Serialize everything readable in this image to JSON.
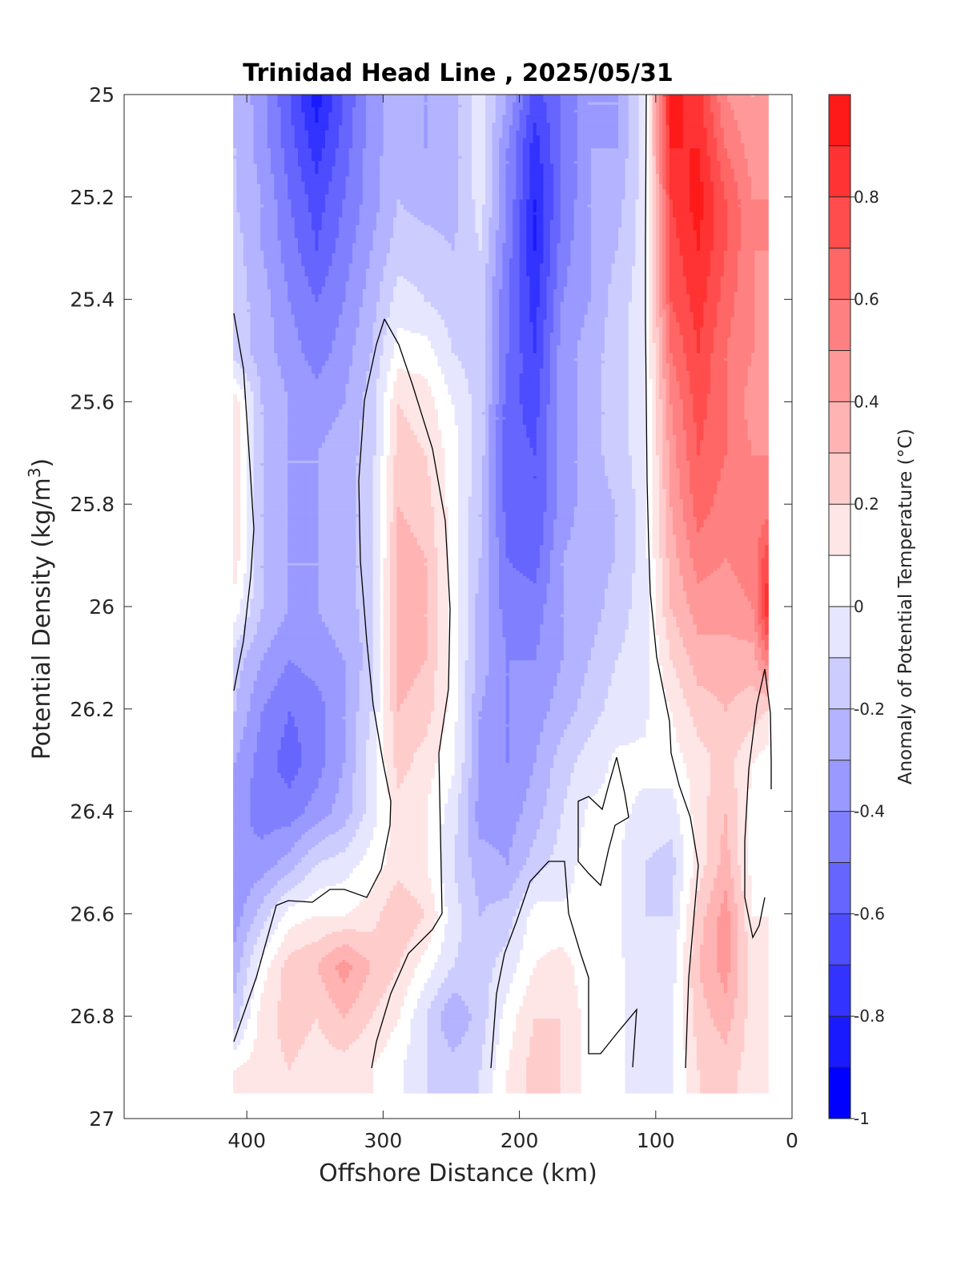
{
  "chart_data": {
    "type": "heatmap",
    "subtype": "filled-contour",
    "title": "Trinidad Head Line , 2025/05/31",
    "xlabel": "Offshore Distance (km)",
    "ylabel_main": "Potential Density (kg/m",
    "ylabel_sup": "3",
    "ylabel_close": ")",
    "xlim": [
      490,
      0
    ],
    "x_reversed": true,
    "ylim": [
      25,
      27
    ],
    "y_reversed": true,
    "xticks": [
      400,
      300,
      200,
      100,
      0
    ],
    "yticks": [
      25,
      25.2,
      25.4,
      25.6,
      25.8,
      26,
      26.2,
      26.4,
      26.6,
      26.8,
      27
    ],
    "ytick_labels": [
      "25",
      "25.2",
      "25.4",
      "25.6",
      "25.8",
      "26",
      "26.2",
      "26.4",
      "26.6",
      "26.8",
      "27"
    ],
    "colorbar": {
      "label": "Anomaly of Potential Temperature (°C)",
      "range": [
        -1,
        1
      ],
      "levels": [
        -1,
        -0.9,
        -0.8,
        -0.7,
        -0.6,
        -0.5,
        -0.4,
        -0.3,
        -0.2,
        -0.1,
        0,
        0.1,
        0.2,
        0.3,
        0.4,
        0.5,
        0.6,
        0.7,
        0.8,
        0.9,
        1
      ],
      "colors": [
        "#0000ff",
        "#1a1aff",
        "#3333ff",
        "#4d4dff",
        "#6666ff",
        "#8080ff",
        "#9999ff",
        "#b3b3ff",
        "#ccccff",
        "#e6e6ff",
        "#ffffff",
        "#ffe6e6",
        "#ffcccc",
        "#ffb3b3",
        "#ff9999",
        "#ff8080",
        "#ff6666",
        "#ff4d4d",
        "#ff3333",
        "#ff1a1a"
      ],
      "ticks": [
        -1,
        -0.8,
        -0.6,
        -0.4,
        -0.2,
        0,
        0.2,
        0.4,
        0.6,
        0.8
      ],
      "tick_labels": [
        "-1",
        "-0.8",
        "-0.6",
        "-0.4",
        "-0.2",
        "0",
        "0.2",
        "0.4",
        "0.6",
        "0.8"
      ]
    },
    "data_x_km": [
      410,
      390,
      370,
      350,
      330,
      310,
      290,
      270,
      250,
      230,
      210,
      190,
      170,
      150,
      130,
      110,
      90,
      70,
      50,
      30,
      20
    ],
    "data_y_density": [
      25,
      25.1,
      25.2,
      25.3,
      25.4,
      25.5,
      25.6,
      25.7,
      25.8,
      25.9,
      26,
      26.1,
      26.2,
      26.3,
      26.4,
      26.5,
      26.6,
      26.7,
      26.8,
      26.9
    ],
    "anomaly_grid": [
      [
        -0.22,
        -0.35,
        -0.6,
        -0.85,
        -0.6,
        -0.35,
        -0.22,
        -0.3,
        -0.25,
        -0.05,
        -0.3,
        -0.65,
        -0.5,
        -0.3,
        -0.3,
        -0.05,
        0.95,
        0.85,
        0.5,
        0.4,
        null
      ],
      [
        -0.2,
        -0.35,
        -0.55,
        -0.75,
        -0.55,
        -0.35,
        -0.22,
        -0.3,
        -0.25,
        -0.05,
        -0.4,
        -0.75,
        -0.5,
        -0.3,
        -0.3,
        -0.05,
        0.9,
        0.9,
        0.6,
        0.45,
        null
      ],
      [
        -0.2,
        -0.3,
        -0.5,
        -0.65,
        -0.5,
        -0.35,
        -0.2,
        -0.25,
        -0.25,
        -0.05,
        -0.4,
        -0.8,
        -0.5,
        -0.3,
        -0.25,
        -0.05,
        0.8,
        0.95,
        0.7,
        0.5,
        null
      ],
      [
        -0.15,
        -0.3,
        -0.45,
        -0.6,
        -0.45,
        -0.3,
        -0.15,
        -0.15,
        -0.2,
        -0.1,
        -0.45,
        -0.8,
        -0.45,
        -0.3,
        -0.2,
        -0.05,
        0.75,
        0.9,
        0.7,
        0.5,
        null
      ],
      [
        -0.15,
        -0.25,
        -0.4,
        -0.5,
        -0.4,
        -0.25,
        -0.05,
        -0.1,
        -0.15,
        -0.15,
        -0.5,
        -0.75,
        -0.4,
        -0.3,
        -0.15,
        -0.05,
        0.7,
        0.85,
        0.65,
        0.5,
        0.45
      ],
      [
        -0.15,
        -0.25,
        -0.35,
        -0.45,
        -0.35,
        -0.2,
        0.05,
        0.05,
        -0.1,
        -0.15,
        -0.5,
        -0.7,
        -0.35,
        -0.25,
        -0.15,
        -0.05,
        0.6,
        0.8,
        0.6,
        0.5,
        0.45
      ],
      [
        0.15,
        -0.2,
        -0.3,
        -0.35,
        -0.3,
        -0.15,
        0.2,
        0.15,
        0.0,
        -0.15,
        -0.55,
        -0.65,
        -0.35,
        -0.25,
        -0.15,
        -0.05,
        0.5,
        0.75,
        0.6,
        0.45,
        0.45
      ],
      [
        0.15,
        -0.2,
        -0.3,
        -0.3,
        -0.25,
        -0.15,
        0.25,
        0.2,
        0.05,
        -0.15,
        -0.55,
        -0.6,
        -0.35,
        -0.25,
        -0.15,
        -0.05,
        0.45,
        0.7,
        0.6,
        0.5,
        0.5
      ],
      [
        0.2,
        -0.2,
        -0.3,
        -0.3,
        -0.25,
        -0.15,
        0.3,
        0.25,
        0.05,
        -0.2,
        -0.55,
        -0.6,
        -0.35,
        -0.25,
        -0.2,
        -0.05,
        0.4,
        0.65,
        0.55,
        0.5,
        0.55
      ],
      [
        0.15,
        -0.2,
        -0.3,
        -0.3,
        -0.25,
        -0.15,
        0.35,
        0.3,
        0.05,
        -0.2,
        -0.5,
        -0.55,
        -0.3,
        -0.25,
        -0.2,
        -0.05,
        0.35,
        0.55,
        0.5,
        0.55,
        0.75
      ],
      [
        0.05,
        -0.2,
        -0.3,
        -0.3,
        -0.25,
        -0.15,
        0.35,
        0.3,
        0.05,
        -0.25,
        -0.45,
        -0.45,
        -0.3,
        -0.25,
        -0.15,
        -0.05,
        0.3,
        0.45,
        0.45,
        0.5,
        0.85
      ],
      [
        -0.15,
        -0.3,
        -0.4,
        -0.35,
        -0.3,
        -0.15,
        0.35,
        0.3,
        0.05,
        -0.25,
        -0.4,
        -0.4,
        -0.3,
        -0.2,
        -0.1,
        -0.05,
        0.2,
        0.35,
        0.35,
        0.35,
        0.55
      ],
      [
        -0.2,
        -0.4,
        -0.5,
        -0.45,
        -0.3,
        -0.1,
        0.3,
        0.25,
        0.05,
        -0.3,
        -0.4,
        -0.35,
        -0.25,
        -0.15,
        -0.05,
        -0.02,
        0.1,
        0.25,
        0.3,
        0.25,
        0.2
      ],
      [
        -0.3,
        -0.45,
        -0.55,
        -0.45,
        -0.3,
        -0.05,
        0.25,
        0.15,
        0.02,
        -0.3,
        -0.4,
        -0.3,
        -0.15,
        -0.05,
        0.02,
        0.02,
        0.05,
        0.15,
        0.25,
        0.1,
        0.05
      ],
      [
        -0.35,
        -0.45,
        -0.45,
        -0.35,
        -0.25,
        -0.05,
        0.15,
        0.1,
        -0.05,
        -0.35,
        -0.35,
        -0.25,
        -0.1,
        0.02,
        0.02,
        -0.02,
        -0.05,
        0.15,
        0.3,
        0.05,
        0.02
      ],
      [
        -0.4,
        -0.35,
        -0.25,
        -0.1,
        -0.05,
        0.05,
        0.15,
        0.1,
        -0.1,
        -0.25,
        -0.3,
        -0.15,
        -0.05,
        0.05,
        0.02,
        -0.1,
        -0.15,
        0.15,
        0.35,
        0.05,
        0.02
      ],
      [
        -0.35,
        -0.15,
        0.05,
        0.1,
        0.1,
        0.15,
        0.3,
        0.2,
        -0.05,
        -0.2,
        -0.15,
        0.05,
        0.02,
        0.02,
        0.02,
        -0.1,
        -0.1,
        0.25,
        0.45,
        0.1,
        null
      ],
      [
        -0.25,
        0.05,
        0.25,
        0.3,
        0.45,
        0.3,
        0.2,
        0.05,
        -0.1,
        -0.15,
        -0.05,
        0.1,
        0.15,
        0.02,
        0.02,
        -0.05,
        -0.05,
        0.3,
        0.45,
        0.15,
        null
      ],
      [
        -0.15,
        0.15,
        0.25,
        0.2,
        0.3,
        0.2,
        0.1,
        -0.1,
        -0.3,
        -0.15,
        0.05,
        0.2,
        0.2,
        0.05,
        0.02,
        -0.05,
        -0.02,
        0.25,
        0.35,
        0.15,
        null
      ],
      [
        0.1,
        0.15,
        0.2,
        0.15,
        0.15,
        0.1,
        0.02,
        -0.1,
        -0.15,
        -0.1,
        0.1,
        0.25,
        0.2,
        0.05,
        0.02,
        -0.05,
        -0.02,
        0.2,
        0.25,
        0.15,
        null
      ]
    ]
  }
}
